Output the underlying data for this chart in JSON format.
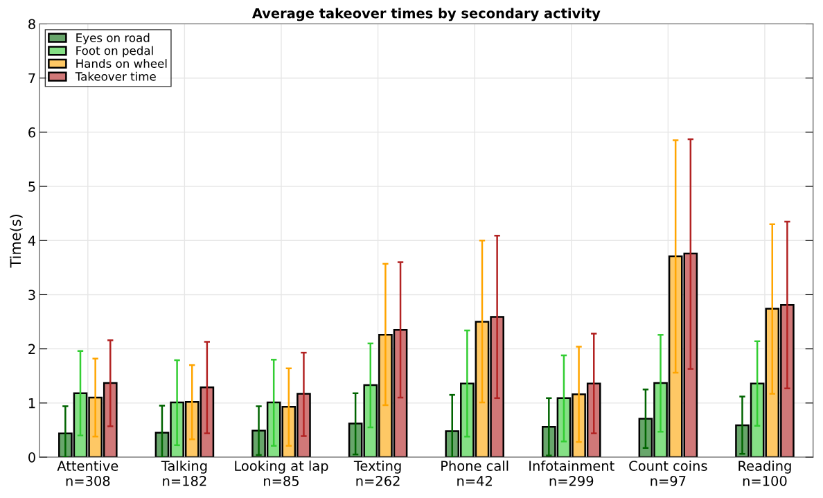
{
  "chart_data": {
    "type": "bar",
    "title": "Average takeover times by secondary activity",
    "ylabel": "Time(s)",
    "categories": [
      "Attentive\nn=308",
      "Talking\nn=182",
      "Looking at lap\nn=85",
      "Texting\nn=262",
      "Phone call\nn=42",
      "Infotainment\nn=299",
      "Count coins\nn=97",
      "Reading\nn=100"
    ],
    "series": [
      {
        "name": "Eyes on road",
        "color": "#68a66b",
        "values": [
          0.44,
          0.45,
          0.49,
          0.62,
          0.48,
          0.56,
          0.71,
          0.59
        ],
        "errors": [
          [
            0,
            0.94
          ],
          [
            0,
            0.95
          ],
          [
            0.04,
            0.94
          ],
          [
            0.05,
            1.18
          ],
          [
            0,
            1.15
          ],
          [
            0.03,
            1.09
          ],
          [
            0.17,
            1.25
          ],
          [
            0.06,
            1.12
          ]
        ]
      },
      {
        "name": "Foot on pedal",
        "color": "#85e085",
        "values": [
          1.18,
          1.01,
          1.01,
          1.33,
          1.36,
          1.09,
          1.37,
          1.36
        ],
        "errors": [
          [
            0.4,
            1.96
          ],
          [
            0.22,
            1.79
          ],
          [
            0.21,
            1.8
          ],
          [
            0.55,
            2.1
          ],
          [
            0.38,
            2.34
          ],
          [
            0.29,
            1.88
          ],
          [
            0.47,
            2.26
          ],
          [
            0.58,
            2.14
          ]
        ]
      },
      {
        "name": "Hands on wheel",
        "color": "#fec865",
        "values": [
          1.1,
          1.02,
          0.93,
          2.26,
          2.5,
          1.16,
          3.71,
          2.74
        ],
        "errors": [
          [
            0.38,
            1.82
          ],
          [
            0.33,
            1.7
          ],
          [
            0.21,
            1.64
          ],
          [
            0.96,
            3.57
          ],
          [
            1.01,
            4.0
          ],
          [
            0.28,
            2.04
          ],
          [
            1.56,
            5.85
          ],
          [
            1.17,
            4.3
          ]
        ]
      },
      {
        "name": "Takeover time",
        "color": "#d07878",
        "values": [
          1.37,
          1.29,
          1.17,
          2.35,
          2.59,
          1.36,
          3.76,
          2.81
        ],
        "errors": [
          [
            0.57,
            2.16
          ],
          [
            0.44,
            2.13
          ],
          [
            0.39,
            1.93
          ],
          [
            1.1,
            3.6
          ],
          [
            1.09,
            4.09
          ],
          [
            0.44,
            2.28
          ],
          [
            1.63,
            5.87
          ],
          [
            1.27,
            4.35
          ]
        ]
      }
    ],
    "ylim": [
      0,
      8
    ],
    "yticks": [
      0,
      1,
      2,
      3,
      4,
      5,
      6,
      7,
      8
    ],
    "grid": true,
    "legend": "top left"
  }
}
